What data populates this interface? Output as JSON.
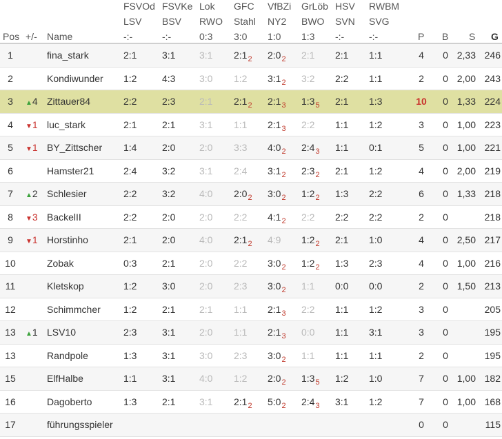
{
  "columns": {
    "pos": "Pos",
    "change": "+/-",
    "name": "Name",
    "p": "P",
    "b": "B",
    "s": "S",
    "g": "G",
    "matches": [
      {
        "l1": "FSVOd",
        "l2": "LSV",
        "l3": "-:-"
      },
      {
        "l1": "FSVKe",
        "l2": "BSV",
        "l3": "-:-"
      },
      {
        "l1": "Lok",
        "l2": "RWO",
        "l3": "0:3"
      },
      {
        "l1": "GFC",
        "l2": "Stahl",
        "l3": "3:0"
      },
      {
        "l1": "VfBZi",
        "l2": "NY2",
        "l3": "1:0"
      },
      {
        "l1": "GrLöb",
        "l2": "BWO",
        "l3": "1:3"
      },
      {
        "l1": "HSV",
        "l2": "SVN",
        "l3": "-:-"
      },
      {
        "l1": "RWBM",
        "l2": "SVG",
        "l3": "-:-"
      }
    ]
  },
  "rows": [
    {
      "pos": "1",
      "change": "",
      "dir": "",
      "name": "fina_stark",
      "highlight": false,
      "m": [
        {
          "t": "2:1",
          "f": false,
          "s": ""
        },
        {
          "t": "3:1",
          "f": false,
          "s": ""
        },
        {
          "t": "3:1",
          "f": true,
          "s": ""
        },
        {
          "t": "2:1",
          "f": false,
          "s": "2"
        },
        {
          "t": "2:0",
          "f": false,
          "s": "2"
        },
        {
          "t": "2:1",
          "f": true,
          "s": ""
        },
        {
          "t": "2:1",
          "f": false,
          "s": ""
        },
        {
          "t": "1:1",
          "f": false,
          "s": ""
        }
      ],
      "p": "4",
      "b": "0",
      "s": "2,33",
      "g": "246"
    },
    {
      "pos": "2",
      "change": "",
      "dir": "",
      "name": "Kondiwunder",
      "highlight": false,
      "m": [
        {
          "t": "1:2",
          "f": false,
          "s": ""
        },
        {
          "t": "4:3",
          "f": false,
          "s": ""
        },
        {
          "t": "3:0",
          "f": true,
          "s": ""
        },
        {
          "t": "1:2",
          "f": true,
          "s": ""
        },
        {
          "t": "3:1",
          "f": false,
          "s": "2"
        },
        {
          "t": "3:2",
          "f": true,
          "s": ""
        },
        {
          "t": "2:2",
          "f": false,
          "s": ""
        },
        {
          "t": "1:1",
          "f": false,
          "s": ""
        }
      ],
      "p": "2",
      "b": "0",
      "s": "2,00",
      "g": "243"
    },
    {
      "pos": "3",
      "change": "4",
      "dir": "up",
      "name": "Zittauer84",
      "highlight": true,
      "m": [
        {
          "t": "2:2",
          "f": false,
          "s": ""
        },
        {
          "t": "2:3",
          "f": false,
          "s": ""
        },
        {
          "t": "2:1",
          "f": true,
          "s": ""
        },
        {
          "t": "2:1",
          "f": false,
          "s": "2"
        },
        {
          "t": "2:1",
          "f": false,
          "s": "3"
        },
        {
          "t": "1:3",
          "f": false,
          "s": "5"
        },
        {
          "t": "2:1",
          "f": false,
          "s": ""
        },
        {
          "t": "1:3",
          "f": false,
          "s": ""
        }
      ],
      "p": "10",
      "b": "0",
      "s": "1,33",
      "g": "224"
    },
    {
      "pos": "4",
      "change": "1",
      "dir": "down",
      "name": "luc_stark",
      "highlight": false,
      "m": [
        {
          "t": "2:1",
          "f": false,
          "s": ""
        },
        {
          "t": "2:1",
          "f": false,
          "s": ""
        },
        {
          "t": "3:1",
          "f": true,
          "s": ""
        },
        {
          "t": "1:1",
          "f": true,
          "s": ""
        },
        {
          "t": "2:1",
          "f": false,
          "s": "3"
        },
        {
          "t": "2:2",
          "f": true,
          "s": ""
        },
        {
          "t": "1:1",
          "f": false,
          "s": ""
        },
        {
          "t": "1:2",
          "f": false,
          "s": ""
        }
      ],
      "p": "3",
      "b": "0",
      "s": "1,00",
      "g": "223"
    },
    {
      "pos": "5",
      "change": "1",
      "dir": "down",
      "name": "BY_Zittscher",
      "highlight": false,
      "m": [
        {
          "t": "1:4",
          "f": false,
          "s": ""
        },
        {
          "t": "2:0",
          "f": false,
          "s": ""
        },
        {
          "t": "2:0",
          "f": true,
          "s": ""
        },
        {
          "t": "3:3",
          "f": true,
          "s": ""
        },
        {
          "t": "4:0",
          "f": false,
          "s": "2"
        },
        {
          "t": "2:4",
          "f": false,
          "s": "3"
        },
        {
          "t": "1:1",
          "f": false,
          "s": ""
        },
        {
          "t": "0:1",
          "f": false,
          "s": ""
        }
      ],
      "p": "5",
      "b": "0",
      "s": "1,00",
      "g": "221"
    },
    {
      "pos": "6",
      "change": "",
      "dir": "",
      "name": "Hamster21",
      "highlight": false,
      "m": [
        {
          "t": "2:4",
          "f": false,
          "s": ""
        },
        {
          "t": "3:2",
          "f": false,
          "s": ""
        },
        {
          "t": "3:1",
          "f": true,
          "s": ""
        },
        {
          "t": "2:4",
          "f": true,
          "s": ""
        },
        {
          "t": "3:1",
          "f": false,
          "s": "2"
        },
        {
          "t": "2:3",
          "f": false,
          "s": "2"
        },
        {
          "t": "2:1",
          "f": false,
          "s": ""
        },
        {
          "t": "1:2",
          "f": false,
          "s": ""
        }
      ],
      "p": "4",
      "b": "0",
      "s": "2,00",
      "g": "219"
    },
    {
      "pos": "7",
      "change": "2",
      "dir": "up",
      "name": "Schlesier",
      "highlight": false,
      "m": [
        {
          "t": "2:2",
          "f": false,
          "s": ""
        },
        {
          "t": "3:2",
          "f": false,
          "s": ""
        },
        {
          "t": "4:0",
          "f": true,
          "s": ""
        },
        {
          "t": "2:0",
          "f": false,
          "s": "2"
        },
        {
          "t": "3:0",
          "f": false,
          "s": "2"
        },
        {
          "t": "1:2",
          "f": false,
          "s": "2"
        },
        {
          "t": "1:3",
          "f": false,
          "s": ""
        },
        {
          "t": "2:2",
          "f": false,
          "s": ""
        }
      ],
      "p": "6",
      "b": "0",
      "s": "1,33",
      "g": "218"
    },
    {
      "pos": "8",
      "change": "3",
      "dir": "down",
      "name": "BackelII",
      "highlight": false,
      "m": [
        {
          "t": "2:2",
          "f": false,
          "s": ""
        },
        {
          "t": "2:0",
          "f": false,
          "s": ""
        },
        {
          "t": "2:0",
          "f": true,
          "s": ""
        },
        {
          "t": "2:2",
          "f": true,
          "s": ""
        },
        {
          "t": "4:1",
          "f": false,
          "s": "2"
        },
        {
          "t": "2:2",
          "f": true,
          "s": ""
        },
        {
          "t": "2:2",
          "f": false,
          "s": ""
        },
        {
          "t": "2:2",
          "f": false,
          "s": ""
        }
      ],
      "p": "2",
      "b": "0",
      "s": "",
      "g": "218"
    },
    {
      "pos": "9",
      "change": "1",
      "dir": "down",
      "name": "Horstinho",
      "highlight": false,
      "m": [
        {
          "t": "2:1",
          "f": false,
          "s": ""
        },
        {
          "t": "2:0",
          "f": false,
          "s": ""
        },
        {
          "t": "4:0",
          "f": true,
          "s": ""
        },
        {
          "t": "2:1",
          "f": false,
          "s": "2"
        },
        {
          "t": "4:9",
          "f": true,
          "s": ""
        },
        {
          "t": "1:2",
          "f": false,
          "s": "2"
        },
        {
          "t": "2:1",
          "f": false,
          "s": ""
        },
        {
          "t": "1:0",
          "f": false,
          "s": ""
        }
      ],
      "p": "4",
      "b": "0",
      "s": "2,50",
      "g": "217"
    },
    {
      "pos": "10",
      "change": "",
      "dir": "",
      "name": "Zobak",
      "highlight": false,
      "m": [
        {
          "t": "0:3",
          "f": false,
          "s": ""
        },
        {
          "t": "2:1",
          "f": false,
          "s": ""
        },
        {
          "t": "2:0",
          "f": true,
          "s": ""
        },
        {
          "t": "2:2",
          "f": true,
          "s": ""
        },
        {
          "t": "3:0",
          "f": false,
          "s": "2"
        },
        {
          "t": "1:2",
          "f": false,
          "s": "2"
        },
        {
          "t": "1:3",
          "f": false,
          "s": ""
        },
        {
          "t": "2:3",
          "f": false,
          "s": ""
        }
      ],
      "p": "4",
      "b": "0",
      "s": "1,00",
      "g": "216"
    },
    {
      "pos": "11",
      "change": "",
      "dir": "",
      "name": "Kletskop",
      "highlight": false,
      "m": [
        {
          "t": "1:2",
          "f": false,
          "s": ""
        },
        {
          "t": "3:0",
          "f": false,
          "s": ""
        },
        {
          "t": "2:0",
          "f": true,
          "s": ""
        },
        {
          "t": "2:3",
          "f": true,
          "s": ""
        },
        {
          "t": "3:0",
          "f": false,
          "s": "2"
        },
        {
          "t": "1:1",
          "f": true,
          "s": ""
        },
        {
          "t": "0:0",
          "f": false,
          "s": ""
        },
        {
          "t": "0:0",
          "f": false,
          "s": ""
        }
      ],
      "p": "2",
      "b": "0",
      "s": "1,50",
      "g": "213"
    },
    {
      "pos": "12",
      "change": "",
      "dir": "",
      "name": "Schimmcher",
      "highlight": false,
      "m": [
        {
          "t": "1:2",
          "f": false,
          "s": ""
        },
        {
          "t": "2:1",
          "f": false,
          "s": ""
        },
        {
          "t": "2:1",
          "f": true,
          "s": ""
        },
        {
          "t": "1:1",
          "f": true,
          "s": ""
        },
        {
          "t": "2:1",
          "f": false,
          "s": "3"
        },
        {
          "t": "2:2",
          "f": true,
          "s": ""
        },
        {
          "t": "1:1",
          "f": false,
          "s": ""
        },
        {
          "t": "1:2",
          "f": false,
          "s": ""
        }
      ],
      "p": "3",
      "b": "0",
      "s": "",
      "g": "205"
    },
    {
      "pos": "13",
      "change": "1",
      "dir": "up",
      "name": "LSV10",
      "highlight": false,
      "m": [
        {
          "t": "2:3",
          "f": false,
          "s": ""
        },
        {
          "t": "3:1",
          "f": false,
          "s": ""
        },
        {
          "t": "2:0",
          "f": true,
          "s": ""
        },
        {
          "t": "1:1",
          "f": true,
          "s": ""
        },
        {
          "t": "2:1",
          "f": false,
          "s": "3"
        },
        {
          "t": "0:0",
          "f": true,
          "s": ""
        },
        {
          "t": "1:1",
          "f": false,
          "s": ""
        },
        {
          "t": "3:1",
          "f": false,
          "s": ""
        }
      ],
      "p": "3",
      "b": "0",
      "s": "",
      "g": "195"
    },
    {
      "pos": "13",
      "change": "",
      "dir": "",
      "name": "Randpole",
      "highlight": false,
      "m": [
        {
          "t": "1:3",
          "f": false,
          "s": ""
        },
        {
          "t": "3:1",
          "f": false,
          "s": ""
        },
        {
          "t": "3:0",
          "f": true,
          "s": ""
        },
        {
          "t": "2:3",
          "f": true,
          "s": ""
        },
        {
          "t": "3:0",
          "f": false,
          "s": "2"
        },
        {
          "t": "1:1",
          "f": true,
          "s": ""
        },
        {
          "t": "1:1",
          "f": false,
          "s": ""
        },
        {
          "t": "1:1",
          "f": false,
          "s": ""
        }
      ],
      "p": "2",
      "b": "0",
      "s": "",
      "g": "195"
    },
    {
      "pos": "15",
      "change": "",
      "dir": "",
      "name": "ElfHalbe",
      "highlight": false,
      "m": [
        {
          "t": "1:1",
          "f": false,
          "s": ""
        },
        {
          "t": "3:1",
          "f": false,
          "s": ""
        },
        {
          "t": "4:0",
          "f": true,
          "s": ""
        },
        {
          "t": "1:2",
          "f": true,
          "s": ""
        },
        {
          "t": "2:0",
          "f": false,
          "s": "2"
        },
        {
          "t": "1:3",
          "f": false,
          "s": "5"
        },
        {
          "t": "1:2",
          "f": false,
          "s": ""
        },
        {
          "t": "1:0",
          "f": false,
          "s": ""
        }
      ],
      "p": "7",
      "b": "0",
      "s": "1,00",
      "g": "182"
    },
    {
      "pos": "16",
      "change": "",
      "dir": "",
      "name": "Dagoberto",
      "highlight": false,
      "m": [
        {
          "t": "1:3",
          "f": false,
          "s": ""
        },
        {
          "t": "2:1",
          "f": false,
          "s": ""
        },
        {
          "t": "3:1",
          "f": true,
          "s": ""
        },
        {
          "t": "2:1",
          "f": false,
          "s": "2"
        },
        {
          "t": "5:0",
          "f": false,
          "s": "2"
        },
        {
          "t": "2:4",
          "f": false,
          "s": "3"
        },
        {
          "t": "3:1",
          "f": false,
          "s": ""
        },
        {
          "t": "1:2",
          "f": false,
          "s": ""
        }
      ],
      "p": "7",
      "b": "0",
      "s": "1,00",
      "g": "168"
    },
    {
      "pos": "17",
      "change": "",
      "dir": "",
      "name": "führungsspieler",
      "highlight": false,
      "m": [],
      "p": "0",
      "b": "0",
      "s": "",
      "g": "115"
    }
  ],
  "colors": {
    "highlight_row": "#dfe0a2",
    "alt_row": "#f6f6f6",
    "up_arrow": "#3aa13a",
    "down_arrow": "#c9302c",
    "points_highlight": "#c9302c"
  }
}
